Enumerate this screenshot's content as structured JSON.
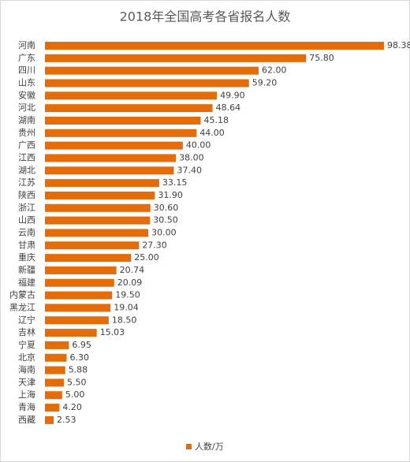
{
  "chart_data": {
    "type": "bar",
    "orientation": "horizontal",
    "title": "2018年全国高考各省报名人数",
    "categories": [
      "河南",
      "广东",
      "四川",
      "山东",
      "安徽",
      "河北",
      "湖南",
      "贵州",
      "广西",
      "江西",
      "湖北",
      "江苏",
      "陕西",
      "浙江",
      "山西",
      "云南",
      "甘肃",
      "重庆",
      "新疆",
      "福建",
      "内蒙古",
      "黑龙江",
      "辽宁",
      "吉林",
      "宁夏",
      "北京",
      "海南",
      "天津",
      "上海",
      "青海",
      "西藏"
    ],
    "series": [
      {
        "name": "人数/万",
        "color": "#e46c0a",
        "values": [
          98.38,
          75.8,
          62,
          59.2,
          49.9,
          48.64,
          45.18,
          44,
          40,
          38,
          37.4,
          33.15,
          31.9,
          30.6,
          30.5,
          30,
          27.3,
          25,
          20.74,
          20.09,
          19.5,
          19.04,
          18.5,
          15.03,
          6.95,
          6.3,
          5.88,
          5.5,
          5,
          4.2,
          2.53
        ],
        "value_labels": [
          "98.38",
          "75.80",
          "62.00",
          "59.20",
          "49.90",
          "48.64",
          "45.18",
          "44.00",
          "40.00",
          "38.00",
          "37.40",
          "33.15",
          "31.90",
          "30.60",
          "30.50",
          "30.00",
          "27.30",
          "25.00",
          "20.74",
          "20.09",
          "19.50",
          "19.04",
          "18.50",
          "15.03",
          "6.95",
          "6.30",
          "5.88",
          "5.50",
          "5.00",
          "4.20",
          "2.53"
        ]
      }
    ],
    "legend": "bottom"
  }
}
